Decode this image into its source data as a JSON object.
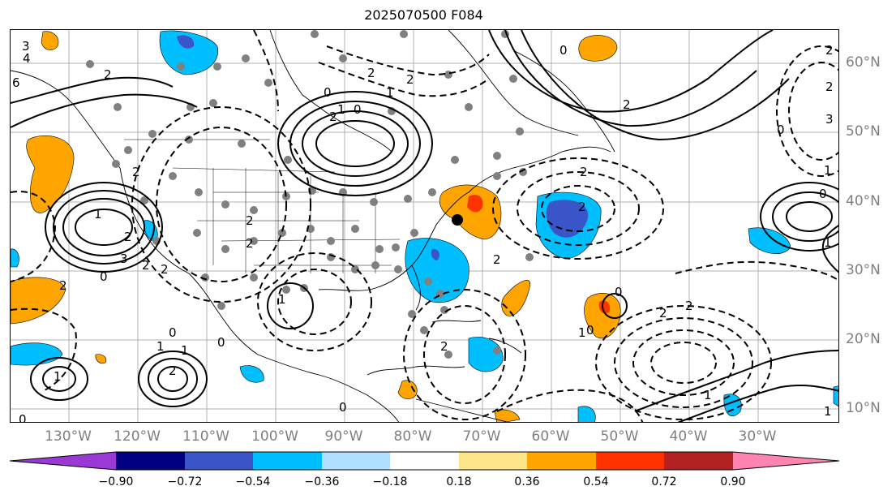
{
  "title": "2025070500 F084",
  "longitude_labels": [
    "130°W",
    "120°W",
    "110°W",
    "100°W",
    "90°W",
    "80°W",
    "70°W",
    "60°W",
    "50°W",
    "40°W",
    "30°W"
  ],
  "latitude_labels": [
    "60°N",
    "50°N",
    "40°N",
    "30°N",
    "20°N",
    "10°N"
  ],
  "colorbar": {
    "ticks": [
      "−0.90",
      "−0.72",
      "−0.54",
      "−0.36",
      "−0.18",
      "0.18",
      "0.36",
      "0.54",
      "0.72",
      "0.90"
    ],
    "colors": [
      "#9a39d6",
      "#000080",
      "#3a55c8",
      "#00bfff",
      "#b0e0ff",
      "#ffffff",
      "#fde58a",
      "#ffa500",
      "#ff3300",
      "#b22222",
      "#ff85b0"
    ]
  },
  "contour_labels": [
    "3",
    "4",
    "6",
    "2",
    "2",
    "1",
    "2",
    "1",
    "0",
    "2",
    "0",
    "0",
    "2",
    "2",
    "3",
    "2",
    "1",
    "0",
    "1",
    "2",
    "2",
    "0",
    "2",
    "1",
    "2",
    "2",
    "2",
    "0",
    "1",
    "2",
    "3",
    "2",
    "2",
    "0",
    "0",
    "2",
    "1",
    "1",
    "2",
    "2",
    "0",
    "0",
    "1",
    "2",
    "2",
    "1",
    "0",
    "1",
    "0",
    "1"
  ],
  "colors": {
    "positive_fill": "#ffa500",
    "strong_positive_fill": "#ff3300",
    "negative_fill": "#00bfff",
    "strong_negative_fill": "#3a55c8",
    "station_marker": "#808080",
    "axis_label": "#808080"
  }
}
